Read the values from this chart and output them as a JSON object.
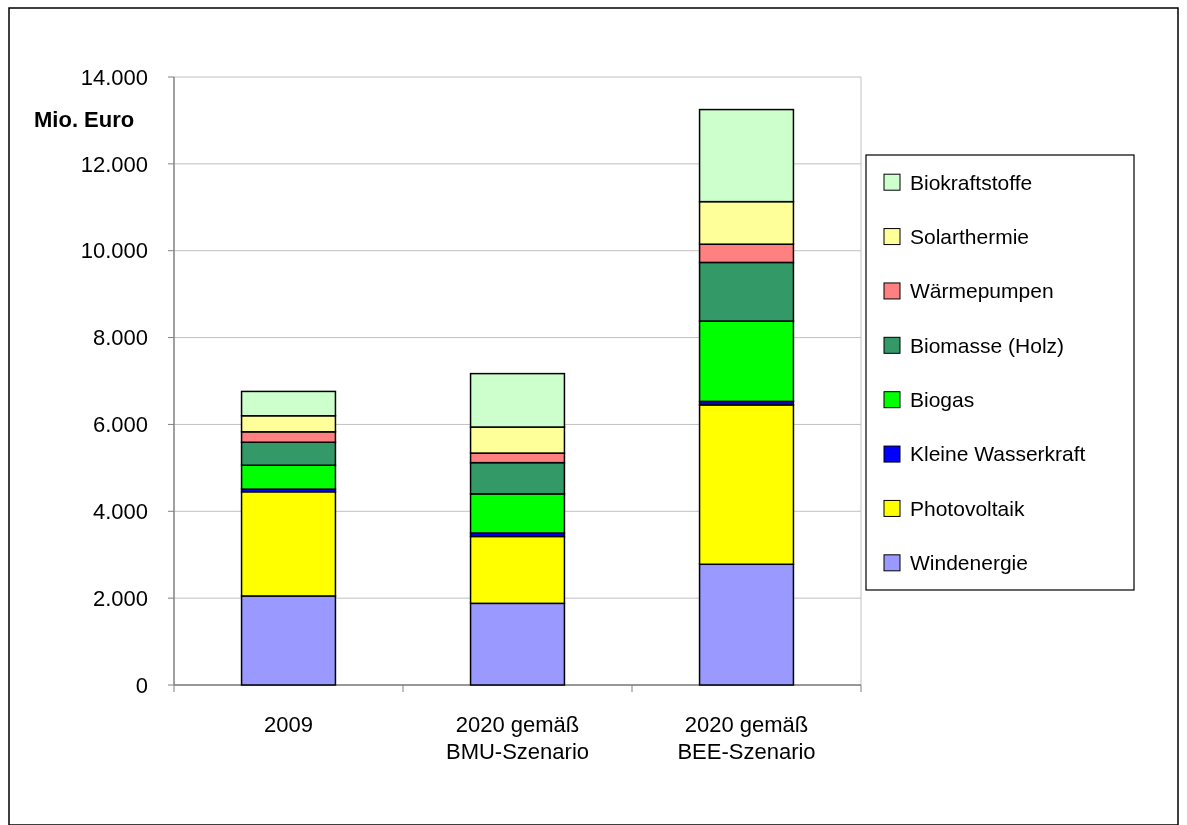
{
  "chart_data": {
    "type": "bar",
    "stacked": true,
    "ylabel": "Mio. Euro",
    "categories": [
      "2009",
      "2020 gemäß\nBMU-Szenario",
      "2020 gemäß\nBEE-Szenario"
    ],
    "series": [
      {
        "name": "Windenergie",
        "color": "#9999ff",
        "values": [
          2050,
          1880,
          2780
        ]
      },
      {
        "name": "Photovoltaik",
        "color": "#ffff00",
        "values": [
          2400,
          1540,
          3670
        ]
      },
      {
        "name": "Kleine Wasserkraft",
        "color": "#0000ff",
        "values": [
          60,
          80,
          80
        ]
      },
      {
        "name": "Biogas",
        "color": "#00ff00",
        "values": [
          550,
          900,
          1850
        ]
      },
      {
        "name": "Biomasse (Holz)",
        "color": "#339966",
        "values": [
          530,
          720,
          1350
        ]
      },
      {
        "name": "Wärmepumpen",
        "color": "#ff8080",
        "values": [
          240,
          220,
          420
        ]
      },
      {
        "name": "Solarthermie",
        "color": "#ffff99",
        "values": [
          370,
          600,
          980
        ]
      },
      {
        "name": "Biokraftstoffe",
        "color": "#ccffcc",
        "values": [
          560,
          1230,
          2120
        ]
      }
    ],
    "ylim": [
      0,
      14000
    ],
    "yticks": [
      0,
      {
        "value": 2000,
        "label": "2.000"
      },
      {
        "value": 4000,
        "label": "4.000"
      },
      {
        "value": 6000,
        "label": "6.000"
      },
      {
        "value": 8000,
        "label": "8.000"
      },
      {
        "value": 10000,
        "label": "10.000"
      },
      {
        "value": 12000,
        "label": "12.000"
      },
      {
        "value": 14000,
        "label": "14.000"
      }
    ],
    "grid": "y",
    "legend": "right"
  }
}
